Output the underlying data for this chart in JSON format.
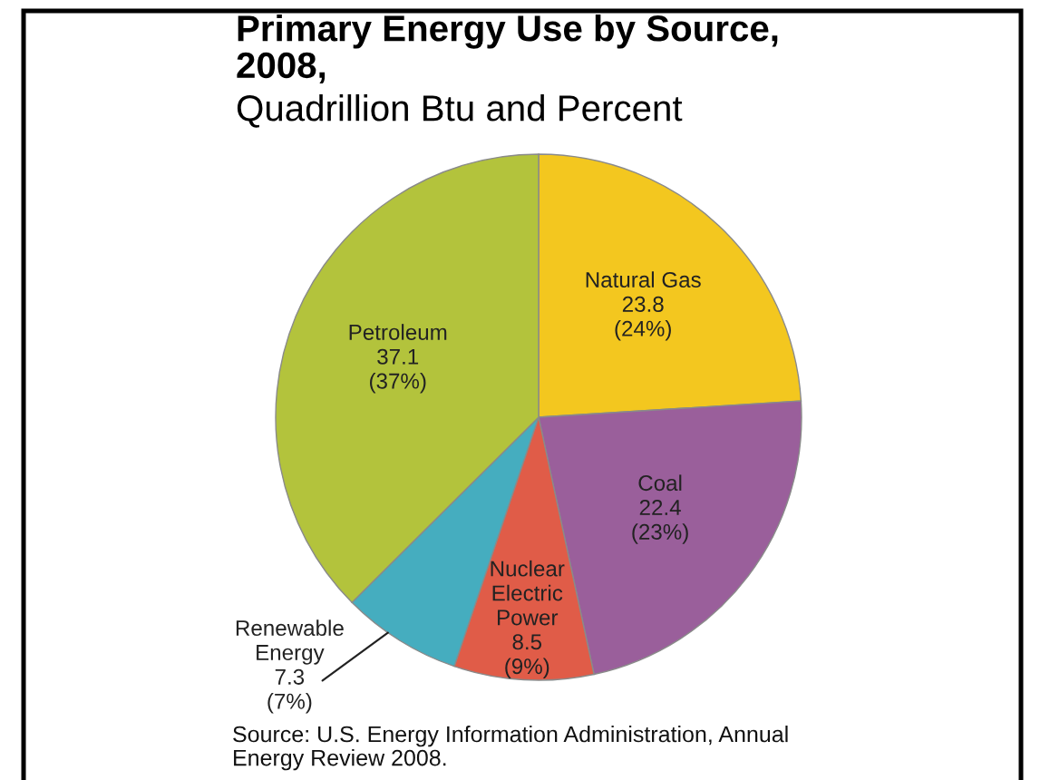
{
  "chart_data": {
    "type": "pie",
    "title": "Primary Energy Use by Source,\n2008,",
    "subtitle": "Quadrillion Btu and Percent",
    "categories": [
      "Natural Gas",
      "Coal",
      "Nuclear\nElectric\nPower",
      "Renewable\nEnergy",
      "Petroleum"
    ],
    "values": [
      23.8,
      22.4,
      8.5,
      7.3,
      37.1
    ],
    "colors": [
      "#f3c71f",
      "#9a5f9b",
      "#e05c48",
      "#45adbf",
      "#b3c33c"
    ],
    "value_labels": [
      "23.8\n(24%)",
      "22.4\n(23%)",
      "8.5\n(9%)",
      "7.3\n(7%)",
      "37.1\n(37%)"
    ],
    "annotations": [
      "Source: U.S. Energy Information Administration, Annual\nEnergy Review 2008."
    ]
  }
}
